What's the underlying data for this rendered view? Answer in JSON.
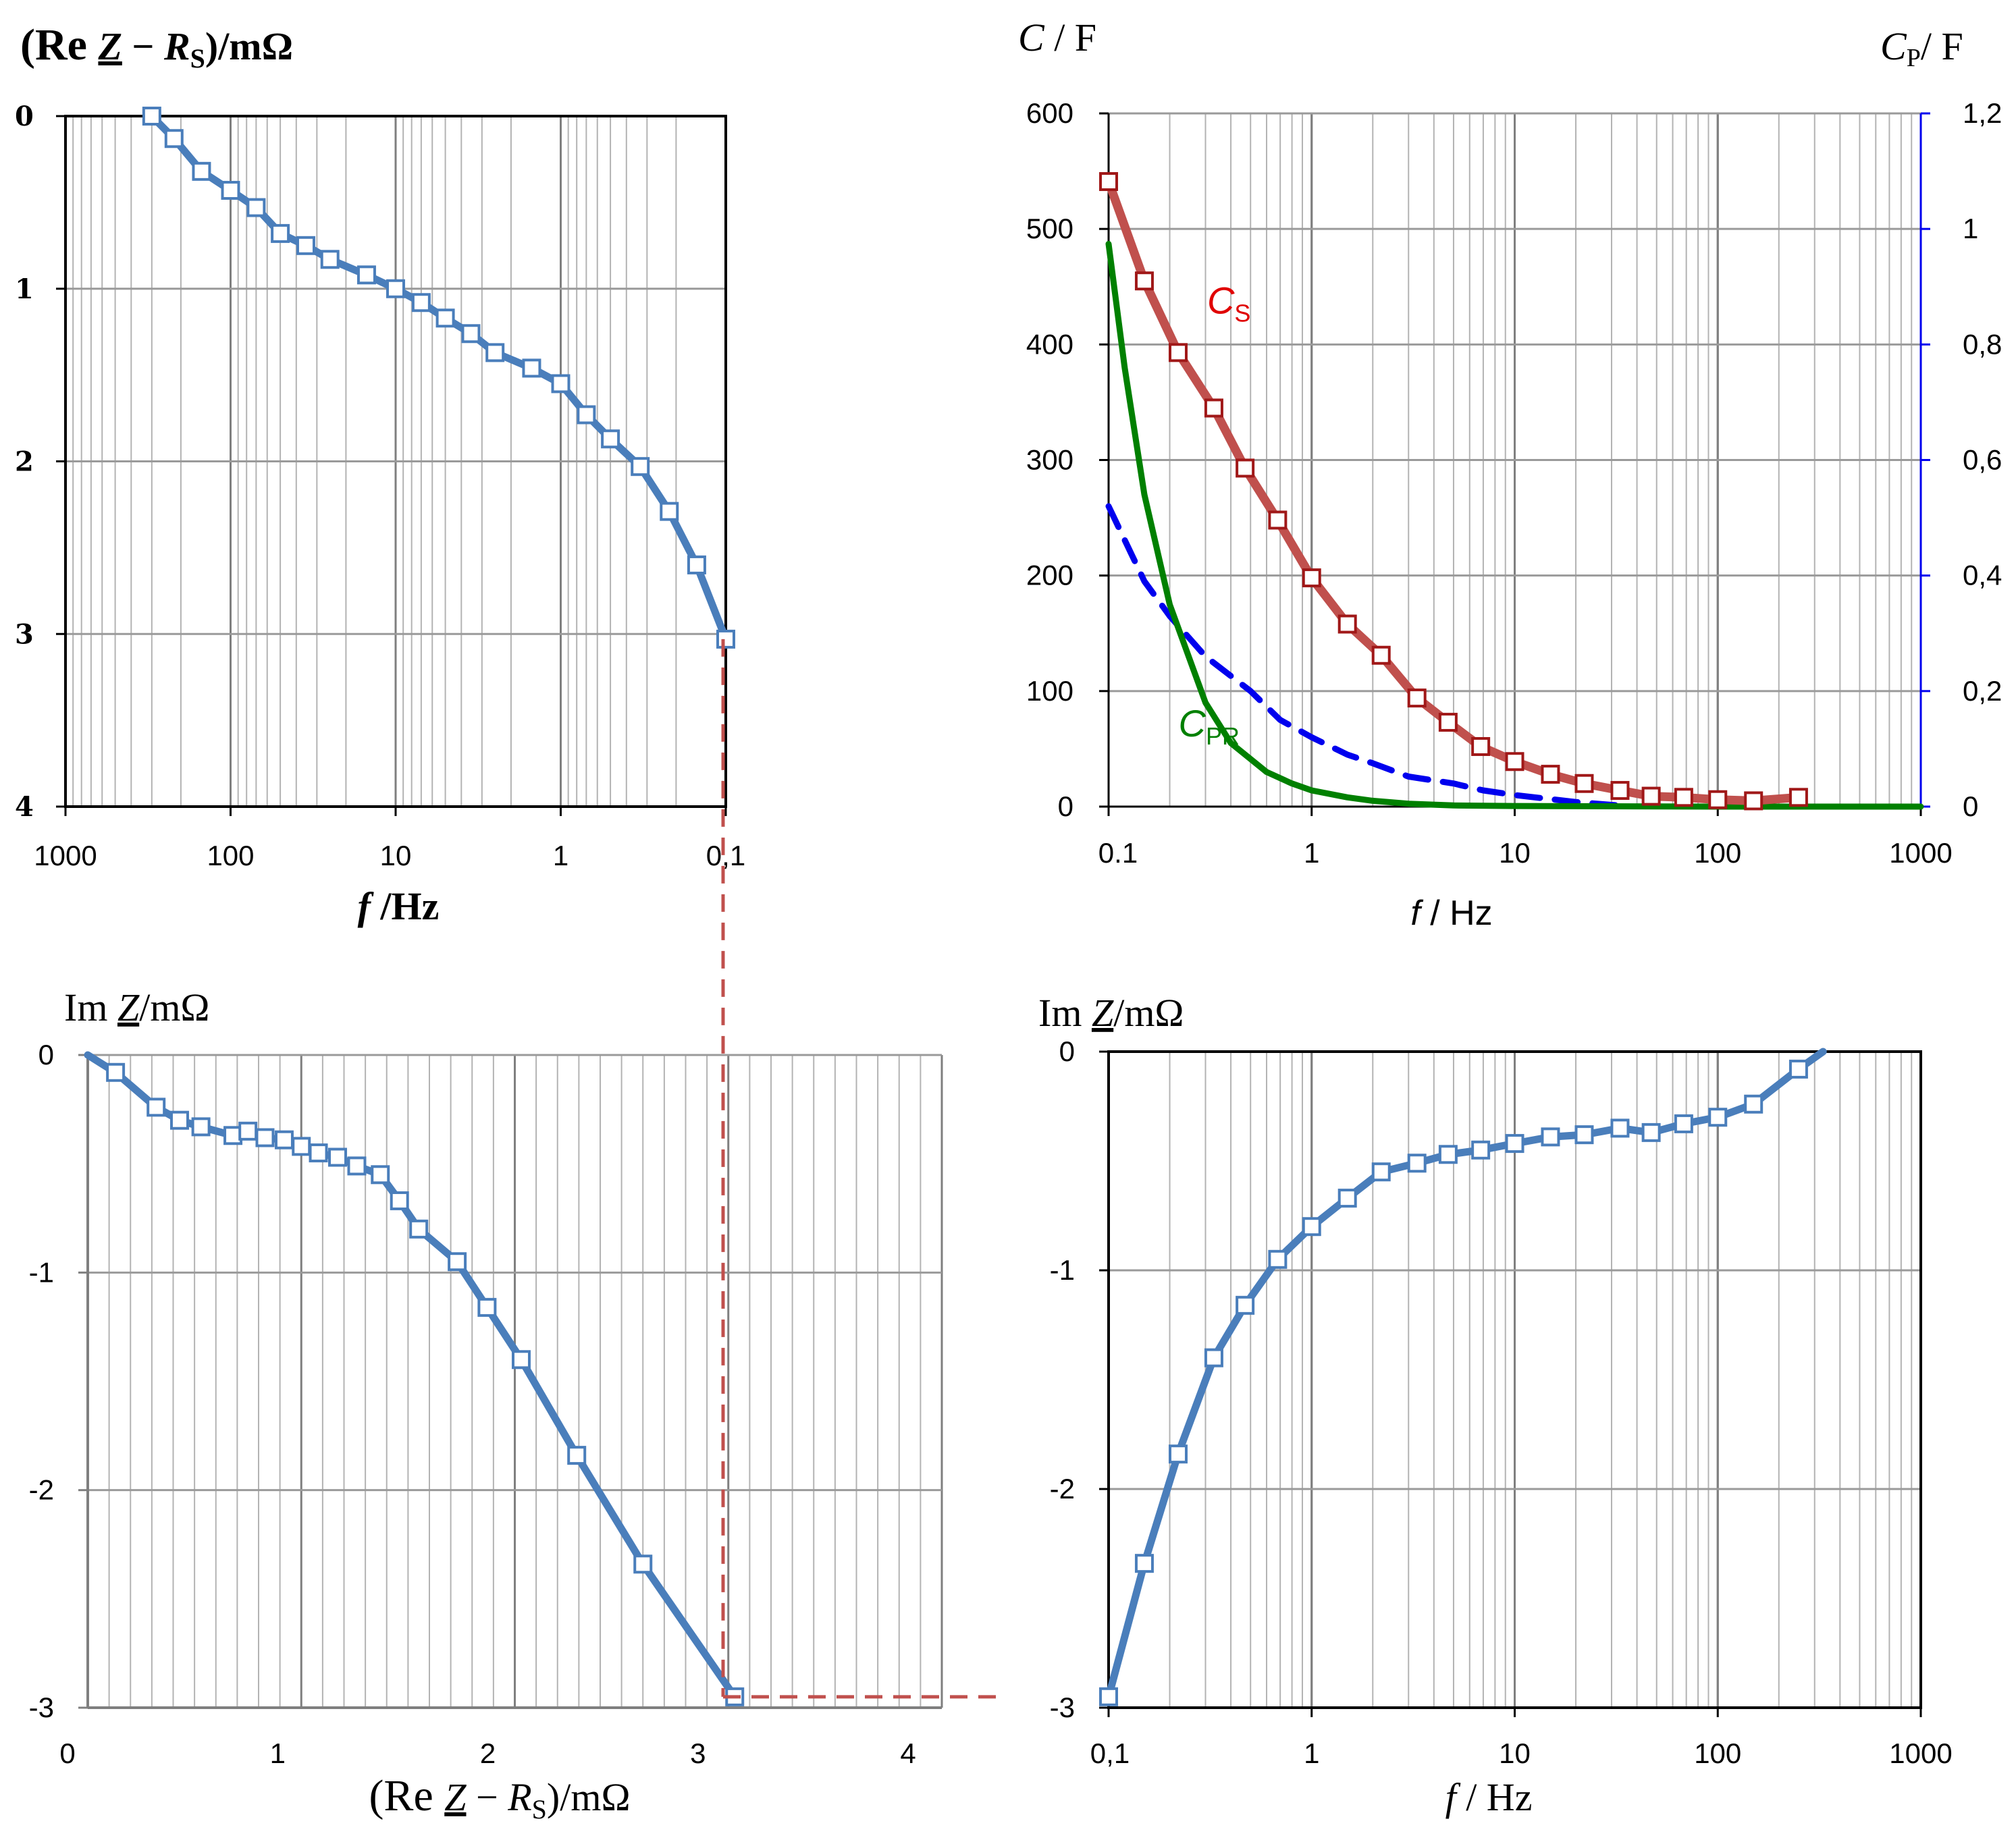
{
  "colors": {
    "series": "#4a7ebb",
    "marker_fill": "#ffffff",
    "cs": "#c0504d",
    "cs_marker": "#a01818",
    "cp": "#0000ee",
    "cpr": "#008000",
    "guide": "#c0504d",
    "grid": "#b3b3b3",
    "axis": "#000000"
  },
  "chart_data": [
    {
      "id": "top-left",
      "type": "line",
      "ylabel": "(Re Z − R_S)/mΩ",
      "ylabel_parts": {
        "open": "(Re ",
        "z": "Z",
        "mid": " − ",
        "r": "R",
        "sub": "S",
        "close": ")/mΩ"
      },
      "xlabel": "f /Hz",
      "xlabel_parts": {
        "f": "f",
        "rest": " /Hz"
      },
      "x_scale": "log",
      "x_reversed": true,
      "xlim": [
        1000,
        0.1
      ],
      "xticks": [
        1000,
        100,
        10,
        1,
        0.1
      ],
      "xtick_labels": [
        "1000",
        "100",
        "10",
        "1",
        "0,1"
      ],
      "ylim": [
        0,
        4
      ],
      "y_inverted": true,
      "yticks": [
        0,
        1,
        2,
        3,
        4
      ],
      "ytick_labels": [
        "0",
        "1",
        "2",
        "3",
        "4"
      ],
      "series": [
        {
          "name": "Re Z − R_S",
          "x": [
            300,
            220,
            150,
            100,
            70,
            50,
            35,
            25,
            15,
            10,
            7,
            5,
            3.5,
            2.5,
            1.5,
            1,
            0.7,
            0.5,
            0.33,
            0.22,
            0.15,
            0.1
          ],
          "y": [
            0,
            0.13,
            0.32,
            0.43,
            0.53,
            0.68,
            0.75,
            0.83,
            0.92,
            1.0,
            1.08,
            1.17,
            1.26,
            1.37,
            1.46,
            1.55,
            1.73,
            1.87,
            2.03,
            2.29,
            2.6,
            3.03
          ]
        }
      ]
    },
    {
      "id": "top-right",
      "type": "line",
      "ylabel": "C / F",
      "ylabel_parts": {
        "c": "C",
        "rest": " / F"
      },
      "y2label": "C_P/ F",
      "y2label_parts": {
        "c": "C",
        "sub": "P",
        "rest": "/ F"
      },
      "xlabel": "f / Hz",
      "xlabel_parts": {
        "f": "f",
        "rest": " / Hz"
      },
      "x_scale": "log",
      "xlim": [
        0.1,
        1000
      ],
      "xticks": [
        0.1,
        1,
        10,
        100,
        1000
      ],
      "xtick_labels": [
        "0.1",
        "1",
        "10",
        "100",
        "1000"
      ],
      "ylim": [
        0,
        600
      ],
      "yticks": [
        0,
        100,
        200,
        300,
        400,
        500,
        600
      ],
      "ytick_labels": [
        "0",
        "100",
        "200",
        "300",
        "400",
        "500",
        "600"
      ],
      "y2lim": [
        0,
        1.2
      ],
      "y2ticks": [
        0,
        0.2,
        0.4,
        0.6,
        0.8,
        1.0,
        1.2
      ],
      "y2tick_labels": [
        "0",
        "0,2",
        "0,4",
        "0,6",
        "0,8",
        "1",
        "1,2"
      ],
      "annotations": [
        {
          "c": "C",
          "sub": "S",
          "color": "cs",
          "at_series": "C_S"
        },
        {
          "c": "C",
          "sub": "PR",
          "color": "cpr",
          "at_series": "C_PR"
        }
      ],
      "series": [
        {
          "name": "C_S",
          "axis": "left",
          "style": "line+square",
          "x": [
            0.1,
            0.15,
            0.22,
            0.33,
            0.47,
            0.68,
            1,
            1.5,
            2.2,
            3.3,
            4.7,
            6.8,
            10,
            15,
            22,
            33,
            47,
            68,
            100,
            150,
            250
          ],
          "y": [
            541,
            455,
            393,
            345,
            293,
            248,
            198,
            158,
            131,
            94,
            73,
            52,
            39,
            28,
            20,
            14,
            9,
            8,
            6,
            5,
            8
          ]
        },
        {
          "name": "C_P",
          "axis": "right",
          "style": "dashed",
          "x": [
            0.1,
            0.15,
            0.2,
            0.3,
            0.5,
            0.7,
            1,
            1.5,
            2,
            3,
            5,
            7,
            10,
            20,
            35
          ],
          "y": [
            0.52,
            0.39,
            0.33,
            0.26,
            0.2,
            0.15,
            0.12,
            0.09,
            0.075,
            0.052,
            0.04,
            0.028,
            0.02,
            0.008,
            0.001
          ]
        },
        {
          "name": "C_PR",
          "axis": "left",
          "style": "line",
          "x": [
            0.1,
            0.12,
            0.15,
            0.2,
            0.3,
            0.4,
            0.6,
            0.8,
            1,
            1.5,
            2,
            3,
            5,
            10,
            100,
            1000
          ],
          "y": [
            487,
            380,
            270,
            175,
            90,
            55,
            30,
            20,
            14,
            8,
            5,
            2.5,
            1,
            0.5,
            0,
            0
          ]
        }
      ]
    },
    {
      "id": "bottom-left",
      "type": "line",
      "ylabel": "Im Z/mΩ",
      "ylabel_parts": {
        "im": "Im ",
        "z": "Z",
        "rest": "/mΩ"
      },
      "xlabel": "(Re Z − R_S)/mΩ",
      "xlabel_parts": {
        "open": "(Re ",
        "z": "Z",
        "mid": " − ",
        "r": "R",
        "sub": "S",
        "close": ")/mΩ"
      },
      "x_scale": "linear",
      "xlim": [
        0,
        4
      ],
      "xticks": [
        0,
        1,
        2,
        3,
        4
      ],
      "xtick_labels": [
        "0",
        "1",
        "2",
        "3",
        "4"
      ],
      "ylim": [
        0,
        -3
      ],
      "y_inverted": true,
      "yticks": [
        0,
        -1,
        -2,
        -3
      ],
      "ytick_labels": [
        "0",
        "-1",
        "-2",
        "-3"
      ],
      "series": [
        {
          "name": "Nyquist",
          "x": [
            0,
            0.13,
            0.32,
            0.43,
            0.53,
            0.68,
            0.75,
            0.83,
            0.92,
            1.0,
            1.08,
            1.17,
            1.26,
            1.37,
            1.46,
            1.55,
            1.73,
            1.87,
            2.03,
            2.29,
            2.6,
            3.03
          ],
          "y": [
            0,
            -0.08,
            -0.24,
            -0.3,
            -0.33,
            -0.37,
            -0.35,
            -0.38,
            -0.39,
            -0.42,
            -0.45,
            -0.47,
            -0.51,
            -0.55,
            -0.67,
            -0.8,
            -0.95,
            -1.16,
            -1.4,
            -1.84,
            -2.34,
            -2.95
          ]
        }
      ]
    },
    {
      "id": "bottom-right",
      "type": "line",
      "ylabel": "Im Z/mΩ",
      "ylabel_parts": {
        "im": "Im ",
        "z": "Z",
        "rest": "/mΩ"
      },
      "xlabel": "f / Hz",
      "xlabel_parts": {
        "f": "f",
        "rest": " / Hz"
      },
      "x_scale": "log",
      "xlim": [
        0.1,
        1000
      ],
      "xticks": [
        0.1,
        1,
        10,
        100,
        1000
      ],
      "xtick_labels": [
        "0,1",
        "1",
        "10",
        "100",
        "1000"
      ],
      "ylim": [
        0,
        -3
      ],
      "y_inverted": true,
      "yticks": [
        0,
        -1,
        -2,
        -3
      ],
      "ytick_labels": [
        "0",
        "-1",
        "-2",
        "-3"
      ],
      "series": [
        {
          "name": "Im Z vs f",
          "x": [
            0.1,
            0.15,
            0.22,
            0.33,
            0.47,
            0.68,
            1,
            1.5,
            2.2,
            3.3,
            4.7,
            6.8,
            10,
            15,
            22,
            33,
            47,
            68,
            100,
            150,
            250,
            330
          ],
          "y": [
            -2.95,
            -2.34,
            -1.84,
            -1.4,
            -1.16,
            -0.95,
            -0.8,
            -0.67,
            -0.55,
            -0.51,
            -0.47,
            -0.45,
            -0.42,
            -0.39,
            -0.38,
            -0.35,
            -0.37,
            -0.33,
            -0.3,
            -0.24,
            -0.08,
            0
          ]
        }
      ]
    }
  ]
}
